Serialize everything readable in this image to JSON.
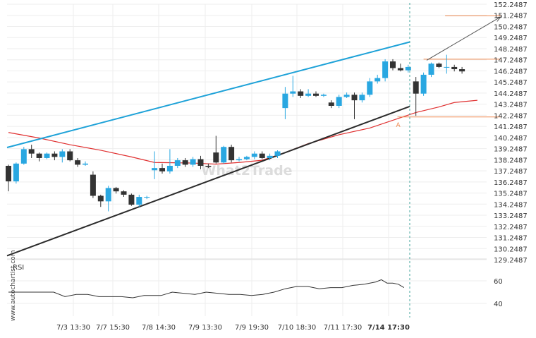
{
  "chart_data": {
    "type": "candlestick",
    "title": "",
    "watermark": "What2Trade",
    "side_label": "www.autochartist.com",
    "rsi_label": "RSI",
    "price_axis": {
      "min": 129.2487,
      "max": 152.2487,
      "ticks": [
        "152.2487",
        "151.2487",
        "150.2487",
        "149.2487",
        "148.2487",
        "147.2487",
        "146.2487",
        "145.2487",
        "144.2487",
        "143.2487",
        "142.2487",
        "141.2487",
        "140.2487",
        "139.2487",
        "138.2487",
        "137.2487",
        "136.2487",
        "135.2487",
        "134.2487",
        "133.2487",
        "132.2487",
        "131.2487",
        "130.2487",
        "129.2487"
      ]
    },
    "rsi_axis": {
      "ticks": [
        "60",
        "40"
      ]
    },
    "x_labels": [
      "7/3 13:30",
      "7/7 15:30",
      "7/8 14:30",
      "7/9 13:30",
      "7/9 19:30",
      "7/10 18:30",
      "7/11 17:30",
      "7/14 17:30"
    ],
    "candles": [
      [
        137.7,
        136.3,
        137.8,
        135.4
      ],
      [
        136.3,
        137.9,
        138.0,
        136.1
      ],
      [
        137.9,
        139.2,
        139.4,
        137.8
      ],
      [
        139.2,
        138.8,
        139.6,
        138.4
      ],
      [
        138.8,
        138.4,
        138.9,
        138.1
      ],
      [
        138.4,
        138.8,
        138.9,
        138.3
      ],
      [
        138.8,
        138.5,
        139.0,
        138.2
      ],
      [
        138.5,
        139.0,
        139.2,
        138.0
      ],
      [
        139.0,
        138.2,
        139.2,
        138.1
      ],
      [
        138.2,
        137.8,
        138.4,
        137.6
      ],
      [
        137.8,
        137.9,
        138.1,
        137.7
      ],
      [
        136.9,
        135.0,
        137.2,
        134.8
      ],
      [
        135.0,
        134.5,
        135.1,
        134.0
      ],
      [
        134.5,
        135.7,
        135.9,
        133.6
      ],
      [
        135.7,
        135.4,
        135.8,
        135.2
      ],
      [
        135.4,
        135.1,
        135.5,
        134.9
      ],
      [
        135.1,
        134.2,
        135.2,
        134.1
      ],
      [
        134.2,
        134.9,
        135.1,
        134.0
      ],
      [
        134.9,
        134.9,
        135.0,
        134.7
      ],
      [
        137.3,
        137.5,
        139.0,
        136.5
      ],
      [
        137.5,
        137.2,
        137.9,
        137.0
      ],
      [
        137.2,
        137.7,
        139.2,
        137.0
      ],
      [
        137.7,
        138.2,
        138.4,
        137.5
      ],
      [
        138.2,
        137.8,
        138.4,
        137.6
      ],
      [
        137.8,
        138.3,
        138.5,
        137.6
      ],
      [
        138.3,
        137.7,
        138.6,
        137.4
      ],
      [
        137.7,
        137.6,
        137.9,
        137.5
      ],
      [
        138.9,
        138.0,
        140.4,
        137.9
      ],
      [
        138.0,
        139.4,
        139.5,
        137.9
      ],
      [
        139.4,
        138.2,
        139.6,
        138.0
      ],
      [
        138.2,
        138.3,
        138.5,
        138.1
      ],
      [
        138.3,
        138.5,
        138.6,
        138.2
      ],
      [
        138.5,
        138.8,
        139.0,
        138.3
      ],
      [
        138.8,
        138.4,
        139.0,
        138.3
      ],
      [
        138.4,
        138.6,
        138.8,
        138.2
      ],
      [
        138.6,
        139.0,
        139.1,
        138.4
      ],
      [
        142.9,
        144.2,
        144.8,
        141.9
      ],
      [
        144.2,
        144.4,
        145.8,
        143.9
      ],
      [
        144.4,
        144.0,
        144.6,
        143.8
      ],
      [
        144.0,
        144.2,
        144.6,
        143.9
      ],
      [
        144.2,
        144.0,
        144.4,
        143.9
      ],
      [
        144.0,
        144.1,
        144.2,
        143.9
      ],
      [
        143.4,
        143.1,
        143.6,
        142.9
      ],
      [
        143.1,
        143.9,
        144.1,
        142.9
      ],
      [
        143.9,
        144.1,
        144.3,
        143.8
      ],
      [
        144.1,
        143.6,
        144.3,
        141.9
      ],
      [
        143.6,
        144.1,
        144.3,
        143.4
      ],
      [
        144.1,
        145.3,
        145.6,
        143.9
      ],
      [
        145.3,
        145.6,
        145.9,
        145.1
      ],
      [
        145.6,
        147.1,
        147.3,
        145.3
      ],
      [
        147.1,
        146.5,
        147.3,
        146.3
      ],
      [
        146.5,
        146.3,
        146.9,
        146.2
      ],
      [
        146.3,
        146.6,
        146.8,
        146.1
      ],
      [
        145.3,
        144.2,
        145.7,
        142.2
      ],
      [
        144.2,
        145.9,
        146.1,
        144.0
      ],
      [
        145.9,
        146.9,
        147.0,
        145.7
      ],
      [
        146.9,
        146.6,
        147.0,
        146.5
      ],
      [
        146.6,
        146.6,
        147.7,
        146.0
      ],
      [
        146.6,
        146.4,
        146.8,
        146.2
      ],
      [
        146.4,
        146.2,
        146.6,
        146.0
      ]
    ],
    "ma_line": [
      [
        0,
        140.7
      ],
      [
        4,
        140.2
      ],
      [
        8,
        139.6
      ],
      [
        12,
        139.1
      ],
      [
        16,
        138.5
      ],
      [
        19,
        138.0
      ],
      [
        24,
        137.95
      ],
      [
        27,
        137.85
      ],
      [
        30,
        138.0
      ],
      [
        33,
        138.2
      ],
      [
        36,
        138.9
      ],
      [
        39,
        139.7
      ],
      [
        43,
        140.5
      ],
      [
        47,
        141.1
      ],
      [
        50,
        141.8
      ],
      [
        53,
        142.5
      ],
      [
        56,
        143.0
      ],
      [
        58,
        143.4
      ],
      [
        61,
        143.6
      ]
    ],
    "rsi": [
      [
        0,
        50
      ],
      [
        8,
        50
      ],
      [
        10,
        46
      ],
      [
        12,
        48
      ],
      [
        14,
        48
      ],
      [
        16,
        46
      ],
      [
        20,
        46
      ],
      [
        22,
        45
      ],
      [
        24,
        47
      ],
      [
        27,
        47
      ],
      [
        29,
        50
      ],
      [
        31,
        49
      ],
      [
        33,
        48
      ],
      [
        35,
        50
      ],
      [
        37,
        49
      ],
      [
        39,
        48
      ],
      [
        41,
        48
      ],
      [
        43,
        47
      ],
      [
        45,
        48
      ],
      [
        47,
        50
      ],
      [
        49,
        53
      ],
      [
        51,
        55
      ],
      [
        53,
        55
      ],
      [
        55,
        53
      ],
      [
        57,
        54
      ],
      [
        59,
        54
      ],
      [
        61,
        56
      ],
      [
        63,
        57
      ],
      [
        65,
        59
      ],
      [
        66,
        61
      ],
      [
        67,
        58
      ],
      [
        68,
        58
      ],
      [
        69,
        57
      ],
      [
        70,
        54
      ]
    ],
    "upper_channel": {
      "start": [
        0,
        139.35
      ],
      "end": [
        52.2,
        148.85
      ]
    },
    "lower_channel": {
      "start": [
        0,
        129.6
      ],
      "end": [
        52.2,
        143.05
      ]
    },
    "levels": [
      {
        "price": 147.3,
        "from_index": 54,
        "to_index": 64
      },
      {
        "price": 142.1,
        "from_index": 50.6,
        "to_index": 64
      },
      {
        "price": 151.2,
        "from_index": 56.8,
        "to_index": 64
      }
    ],
    "projection_arrow": {
      "start": [
        54.4,
        147.2
      ],
      "end": [
        64,
        151.1
      ]
    },
    "point_label": {
      "text": "A",
      "index": 50.7,
      "price": 141.45
    },
    "current_index": 52.2,
    "colors": {
      "bull": "#29a7e1",
      "bear": "#333333",
      "channel": "#1ea2d8",
      "support": "#2b2b2b",
      "ma": "#e03030",
      "level": "#f08a50",
      "arrow": "#555555",
      "grid": "#eeeeee",
      "rsi": "#333333",
      "current": "#4aa8a0"
    }
  }
}
